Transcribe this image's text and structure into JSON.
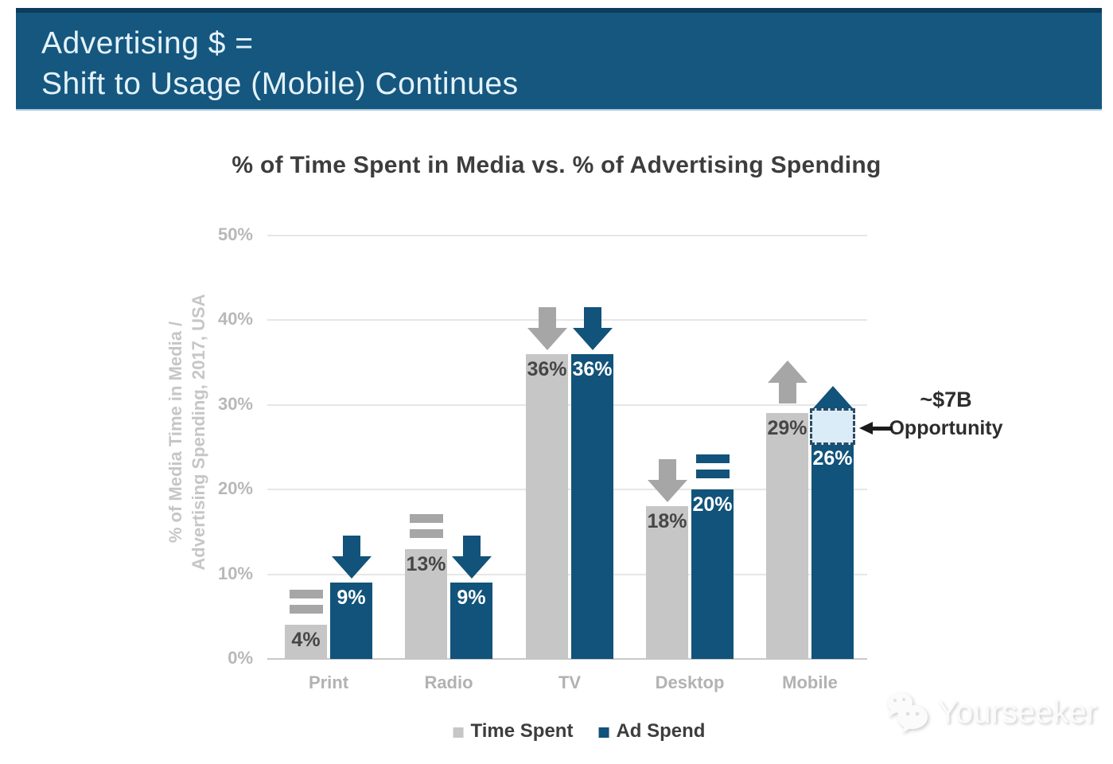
{
  "banner": {
    "line1": "Advertising $ =",
    "line2": "Shift to Usage (Mobile) Continues",
    "bg_color": "#15577e"
  },
  "watermark": {
    "label": "Yourseeker",
    "icon": "wechat-chat-bubbles-icon"
  },
  "chart_data": {
    "type": "bar",
    "title": "% of Time Spent in Media vs. % of Advertising Spending",
    "ylabel": "% of Media Time in Media / Advertising Spending, 2017, USA",
    "ylabel_line1": "% of Media Time in Media /",
    "ylabel_line2": "Advertising Spending, 2017, USA",
    "categories": [
      "Print",
      "Radio",
      "TV",
      "Desktop",
      "Mobile"
    ],
    "series": [
      {
        "name": "Time Spent",
        "color": "#c6c6c6",
        "indicator_color": "#a6a6a6",
        "label_color": "#464646",
        "values": [
          4,
          13,
          36,
          18,
          29
        ],
        "value_labels": [
          "4%",
          "13%",
          "36%",
          "18%",
          "29%"
        ],
        "trends": [
          "flat",
          "flat",
          "down",
          "down",
          "up"
        ]
      },
      {
        "name": "Ad Spend",
        "color": "#11537a",
        "indicator_color": "#11537a",
        "label_color": "#ffffff",
        "values": [
          9,
          9,
          36,
          20,
          26
        ],
        "value_labels": [
          "9%",
          "9%",
          "36%",
          "20%",
          "26%"
        ],
        "trends": [
          "down",
          "down",
          "down",
          "flat",
          "up"
        ]
      }
    ],
    "ylim": [
      0,
      50
    ],
    "yticks": [
      0,
      10,
      20,
      30,
      40,
      50
    ],
    "ytick_labels": [
      "0%",
      "10%",
      "20%",
      "30%",
      "40%",
      "50%"
    ],
    "grid": true,
    "legend_position": "bottom",
    "annotation": {
      "line1": "~$7B",
      "line2": "Opportunity",
      "category": "Mobile",
      "series": "Ad Spend",
      "gap_from_pct": 26,
      "gap_to_pct": 29,
      "box_fill": "#d9ecf8",
      "box_border": "#2c4a63"
    }
  }
}
